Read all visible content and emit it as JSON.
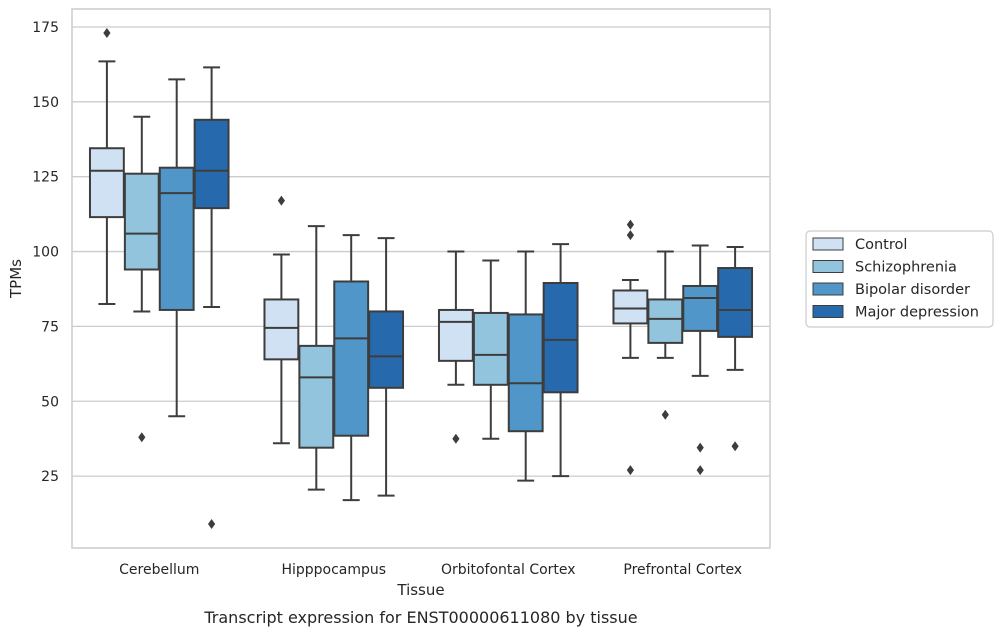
{
  "caption": "Transcript expression for ENST00000611080 by tissue",
  "chart_data": {
    "type": "box",
    "title": "",
    "xlabel": "Tissue",
    "ylabel": "TPMs",
    "categories": [
      "Cerebellum",
      "Hipppocampus",
      "Orbitofontal Cortex",
      "Prefrontal Cortex"
    ],
    "yticks": [
      25,
      50,
      75,
      100,
      125,
      150,
      175
    ],
    "ylim": [
      1,
      181
    ],
    "grid": "horizontal",
    "legend_position": "right",
    "series": [
      {
        "name": "Control",
        "color": "#cfe1f2",
        "boxes": [
          {
            "whisker_low": 82.5,
            "q1": 111.5,
            "median": 127,
            "q3": 134.5,
            "whisker_high": 163.5,
            "outliers": [
              173
            ]
          },
          {
            "whisker_low": 36,
            "q1": 64,
            "median": 74.5,
            "q3": 84,
            "whisker_high": 99,
            "outliers": [
              117
            ]
          },
          {
            "whisker_low": 55.5,
            "q1": 63.5,
            "median": 76.5,
            "q3": 80.5,
            "whisker_high": 100,
            "outliers": [
              37.5
            ]
          },
          {
            "whisker_low": 64.5,
            "q1": 76,
            "median": 81,
            "q3": 87,
            "whisker_high": 90.5,
            "outliers": [
              109,
              105.5,
              27
            ]
          }
        ]
      },
      {
        "name": "Schizophrenia",
        "color": "#93c4de",
        "boxes": [
          {
            "whisker_low": 80,
            "q1": 94,
            "median": 106,
            "q3": 126,
            "whisker_high": 145,
            "outliers": [
              38
            ]
          },
          {
            "whisker_low": 20.5,
            "q1": 34.5,
            "median": 58,
            "q3": 68.5,
            "whisker_high": 108.5,
            "outliers": []
          },
          {
            "whisker_low": 37.5,
            "q1": 55.5,
            "median": 65.5,
            "q3": 79.5,
            "whisker_high": 97,
            "outliers": []
          },
          {
            "whisker_low": 64.5,
            "q1": 69.5,
            "median": 77.5,
            "q3": 84,
            "whisker_high": 100,
            "outliers": [
              45.5
            ]
          }
        ]
      },
      {
        "name": "Bipolar disorder",
        "color": "#5096c8",
        "boxes": [
          {
            "whisker_low": 45,
            "q1": 80.5,
            "median": 119.5,
            "q3": 128,
            "whisker_high": 157.5,
            "outliers": []
          },
          {
            "whisker_low": 17,
            "q1": 38.5,
            "median": 71,
            "q3": 90,
            "whisker_high": 105.5,
            "outliers": []
          },
          {
            "whisker_low": 23.5,
            "q1": 40,
            "median": 56,
            "q3": 79,
            "whisker_high": 100,
            "outliers": []
          },
          {
            "whisker_low": 58.5,
            "q1": 73.5,
            "median": 84.5,
            "q3": 88.5,
            "whisker_high": 102,
            "outliers": [
              34.5,
              27
            ]
          }
        ]
      },
      {
        "name": "Major depression",
        "color": "#2769ad",
        "boxes": [
          {
            "whisker_low": 81.5,
            "q1": 114.5,
            "median": 127,
            "q3": 144,
            "whisker_high": 161.5,
            "outliers": [
              9
            ]
          },
          {
            "whisker_low": 18.5,
            "q1": 54.5,
            "median": 65,
            "q3": 80,
            "whisker_high": 104.5,
            "outliers": []
          },
          {
            "whisker_low": 25,
            "q1": 53,
            "median": 70.5,
            "q3": 89.5,
            "whisker_high": 102.5,
            "outliers": []
          },
          {
            "whisker_low": 60.5,
            "q1": 71.5,
            "median": 80.5,
            "q3": 94.5,
            "whisker_high": 101.5,
            "outliers": [
              35
            ]
          }
        ]
      }
    ]
  }
}
